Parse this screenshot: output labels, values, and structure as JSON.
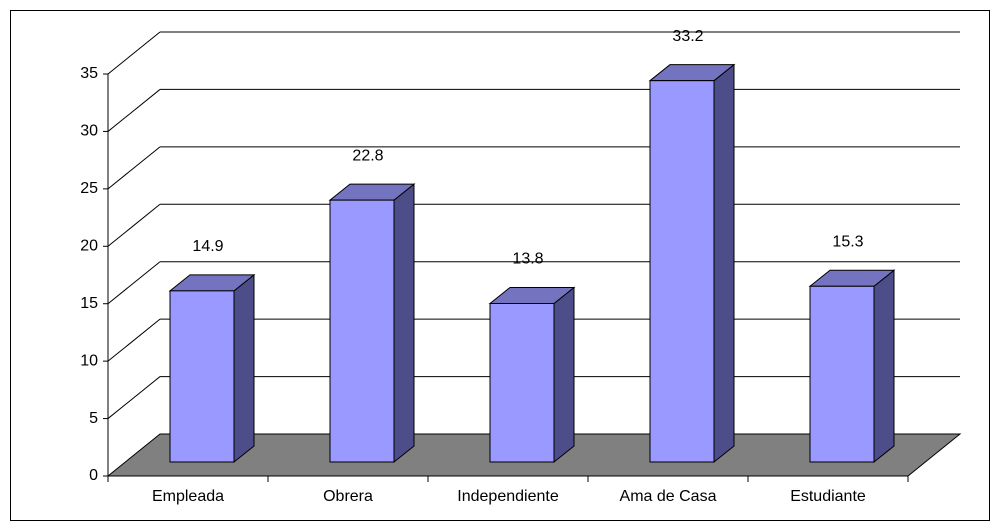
{
  "chart_data": {
    "type": "bar3d",
    "categories": [
      "Empleada",
      "Obrera",
      "Independiente",
      "Ama de Casa",
      "Estudiante"
    ],
    "values": [
      14.9,
      22.8,
      13.8,
      33.2,
      15.3
    ],
    "color": "#9999ff",
    "ylim": [
      0,
      35
    ],
    "yticks": [
      0,
      5,
      10,
      15,
      20,
      25,
      30,
      35
    ],
    "grid": true
  }
}
